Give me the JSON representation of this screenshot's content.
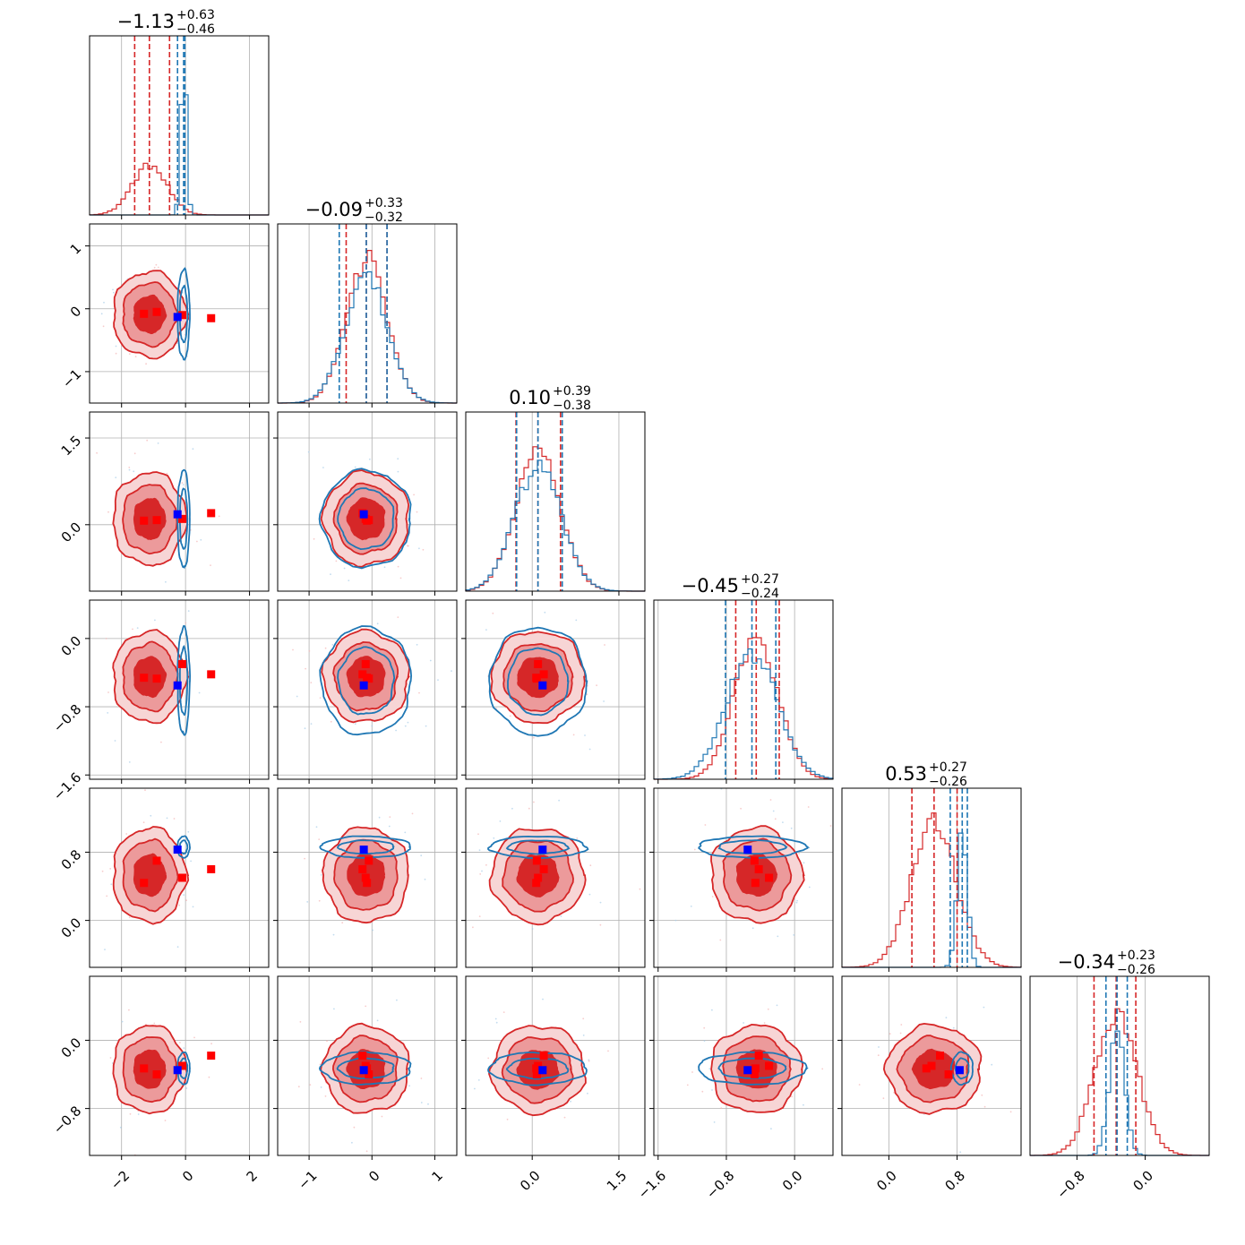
{
  "chart_data": {
    "type": "corner",
    "grid": true,
    "colors": {
      "red": "#d62728",
      "red_mid": "#ec9a9b",
      "red_light": "#f7d5d5",
      "blue": "#1f77b4",
      "marker_red": "#ff0000",
      "marker_blue": "#0000ff",
      "grid": "#b0b0b0"
    },
    "parameters": [
      {
        "title_main": "−1.13",
        "title_sup": "+0.63",
        "title_sub": "−0.46",
        "median": -1.13,
        "lo": -1.59,
        "hi": -0.5,
        "range": [
          -3.0,
          2.6
        ],
        "ticks": [
          -2,
          0,
          2
        ],
        "tick_labels": [
          "−2",
          "0",
          "2"
        ],
        "blue_median": -0.06,
        "blue_sd": 0.09,
        "blue_lo": -0.25,
        "blue_hi": -0.02
      },
      {
        "title_main": "−0.09",
        "title_sup": "+0.33",
        "title_sub": "−0.32",
        "median": -0.09,
        "lo": -0.41,
        "hi": 0.24,
        "range": [
          -1.5,
          1.35
        ],
        "ticks": [
          -1,
          0,
          1
        ],
        "tick_labels": [
          "−1",
          "0",
          "1"
        ],
        "blue_median": -0.09,
        "blue_sd": 0.34,
        "blue_lo": -0.52,
        "blue_hi": 0.24
      },
      {
        "title_main": "0.10",
        "title_sup": "+0.39",
        "title_sub": "−0.38",
        "median": 0.1,
        "lo": -0.28,
        "hi": 0.49,
        "range": [
          -1.15,
          1.95
        ],
        "ticks": [
          0.0,
          1.5
        ],
        "tick_labels": [
          "0.0",
          "1.5"
        ],
        "blue_median": 0.1,
        "blue_sd": 0.4,
        "blue_lo": -0.27,
        "blue_hi": 0.52
      },
      {
        "title_main": "−0.45",
        "title_sup": "+0.27",
        "title_sub": "−0.24",
        "median": -0.45,
        "lo": -0.69,
        "hi": -0.18,
        "range": [
          -1.65,
          0.45
        ],
        "ticks": [
          -1.6,
          -0.8,
          0.0
        ],
        "tick_labels": [
          "−1.6",
          "−0.8",
          "0.0"
        ],
        "blue_median": -0.5,
        "blue_sd": 0.3,
        "blue_lo": -0.81,
        "blue_hi": -0.22
      },
      {
        "title_main": "0.53",
        "title_sup": "+0.27",
        "title_sub": "−0.26",
        "median": 0.53,
        "lo": 0.27,
        "hi": 0.8,
        "range": [
          -0.55,
          1.55
        ],
        "ticks": [
          0.0,
          0.8
        ],
        "tick_labels": [
          "0.0",
          "0.8"
        ],
        "blue_median": 0.86,
        "blue_sd": 0.06,
        "blue_lo": 0.72,
        "blue_hi": 0.92
      },
      {
        "title_main": "−0.34",
        "title_sup": "+0.23",
        "title_sub": "−0.26",
        "median": -0.34,
        "lo": -0.6,
        "hi": -0.11,
        "range": [
          -1.35,
          0.75
        ],
        "ticks": [
          -0.8,
          0.0
        ],
        "tick_labels": [
          "−0.8",
          "0.0"
        ],
        "blue_median": -0.33,
        "blue_sd": 0.09,
        "blue_lo": -0.46,
        "blue_hi": -0.21
      }
    ],
    "red_markers": [
      [
        -1.3,
        -0.08,
        0.07,
        -0.46,
        0.44,
        -0.33
      ],
      [
        -0.9,
        -0.05,
        0.08,
        -0.47,
        0.7,
        -0.4
      ],
      [
        -0.1,
        -0.1,
        0.1,
        -0.3,
        0.5,
        -0.3
      ],
      [
        0.8,
        -0.15,
        0.2,
        -0.42,
        0.6,
        -0.18
      ]
    ],
    "blue_marker": [
      -0.25,
      -0.13,
      0.18,
      -0.55,
      0.83,
      -0.35
    ]
  }
}
